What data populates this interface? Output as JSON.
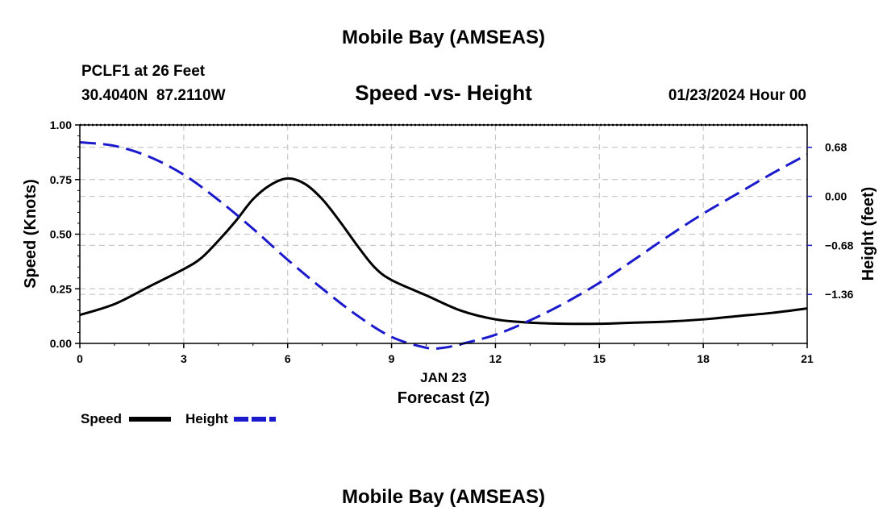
{
  "page": {
    "title": "Mobile Bay (AMSEAS)",
    "station": "PCLF1 at 26 Feet",
    "coords": "30.4040N  87.2110W",
    "datetime": "01/23/2024 Hour 00",
    "footer_title": "Mobile Bay (AMSEAS)"
  },
  "chart_data": {
    "type": "line",
    "title": "Speed -vs- Height",
    "xlabel": "Forecast (Z)",
    "xdate": "JAN 23",
    "ylabel": "Speed (Knots)",
    "y2label": "Height (feet)",
    "xlim": [
      0,
      21
    ],
    "ylim": [
      0,
      1
    ],
    "y2lim": [
      -2.04,
      0.99
    ],
    "xticks": [
      0,
      3,
      6,
      9,
      12,
      15,
      18,
      21
    ],
    "xtick_labels": [
      "0",
      "3",
      "6",
      "9",
      "12",
      "15",
      "18",
      "21"
    ],
    "yticks": [
      0,
      0.25,
      0.5,
      0.75,
      1.0
    ],
    "ytick_labels": [
      "0.00",
      "0.25",
      "0.50",
      "0.75",
      "1.00"
    ],
    "y2ticks": [
      0.68,
      0.0,
      -0.68,
      -1.36
    ],
    "y2tick_labels": [
      "0.68",
      "0.00",
      "−0.68",
      "−1.36"
    ],
    "grid": true,
    "series": [
      {
        "name": "Speed",
        "axis": "left",
        "color": "#000000",
        "style": "solid",
        "x": [
          0,
          1,
          2,
          3,
          3.5,
          4,
          4.5,
          5,
          5.5,
          6,
          6.5,
          7,
          7.5,
          8,
          8.5,
          9,
          10,
          11,
          12,
          13,
          14,
          15,
          16,
          17,
          18,
          19,
          20,
          21
        ],
        "values": [
          0.13,
          0.18,
          0.26,
          0.34,
          0.39,
          0.47,
          0.56,
          0.66,
          0.725,
          0.755,
          0.73,
          0.66,
          0.56,
          0.45,
          0.35,
          0.29,
          0.22,
          0.15,
          0.11,
          0.095,
          0.09,
          0.09,
          0.095,
          0.1,
          0.11,
          0.125,
          0.14,
          0.16
        ]
      },
      {
        "name": "Height",
        "axis": "right",
        "color": "#1a1acc",
        "style": "dashed",
        "x": [
          0,
          1,
          2,
          3,
          4,
          5,
          6,
          7,
          8,
          9,
          10,
          10.5,
          11,
          12,
          13,
          14,
          15,
          16,
          17,
          18,
          19,
          20,
          21
        ],
        "values": [
          0.75,
          0.7,
          0.55,
          0.3,
          -0.05,
          -0.45,
          -0.88,
          -1.28,
          -1.65,
          -1.95,
          -2.1,
          -2.1,
          -2.05,
          -1.92,
          -1.72,
          -1.48,
          -1.2,
          -0.88,
          -0.55,
          -0.24,
          0.04,
          0.32,
          0.58
        ]
      }
    ],
    "legend_position": "bottom-left"
  }
}
